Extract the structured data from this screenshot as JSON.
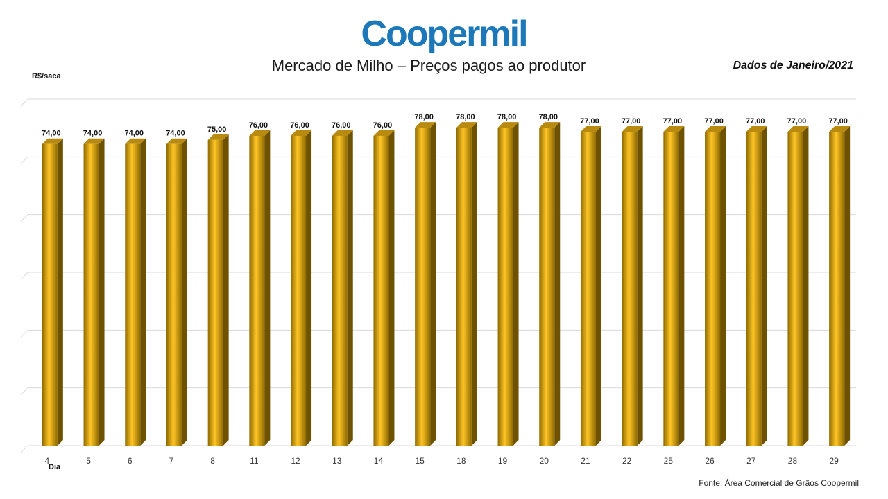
{
  "logo_text": "Coopermil",
  "header": {
    "title": "Mercado de Milho – Preços pagos ao produtor",
    "subtitle": "Dados de Janeiro/2021",
    "source": "Fonte: Área Comercial de Grãos Coopermil"
  },
  "colors": {
    "brand": "#1C78B8",
    "bar_light": "#FFC526",
    "bar_mid": "#E8A808",
    "bar_dark": "#8E6A00",
    "bar_side": "#6E5200",
    "bar_top": "#B88A10"
  },
  "chart_data": {
    "type": "bar",
    "xlabel": "Dia",
    "ylabel": "R$/saca",
    "ylim": [
      0,
      85
    ],
    "grid": true,
    "categories": [
      "4",
      "5",
      "6",
      "7",
      "8",
      "11",
      "12",
      "13",
      "14",
      "15",
      "18",
      "19",
      "20",
      "21",
      "22",
      "25",
      "26",
      "27",
      "28",
      "29"
    ],
    "values": [
      74,
      74,
      74,
      74,
      75,
      76,
      76,
      76,
      76,
      78,
      78,
      78,
      78,
      77,
      77,
      77,
      77,
      77,
      77,
      77
    ],
    "data_labels": [
      "74,00",
      "74,00",
      "74,00",
      "74,00",
      "75,00",
      "76,00",
      "76,00",
      "76,00",
      "76,00",
      "78,00",
      "78,00",
      "78,00",
      "78,00",
      "77,00",
      "77,00",
      "77,00",
      "77,00",
      "77,00",
      "77,00",
      "77,00"
    ]
  }
}
